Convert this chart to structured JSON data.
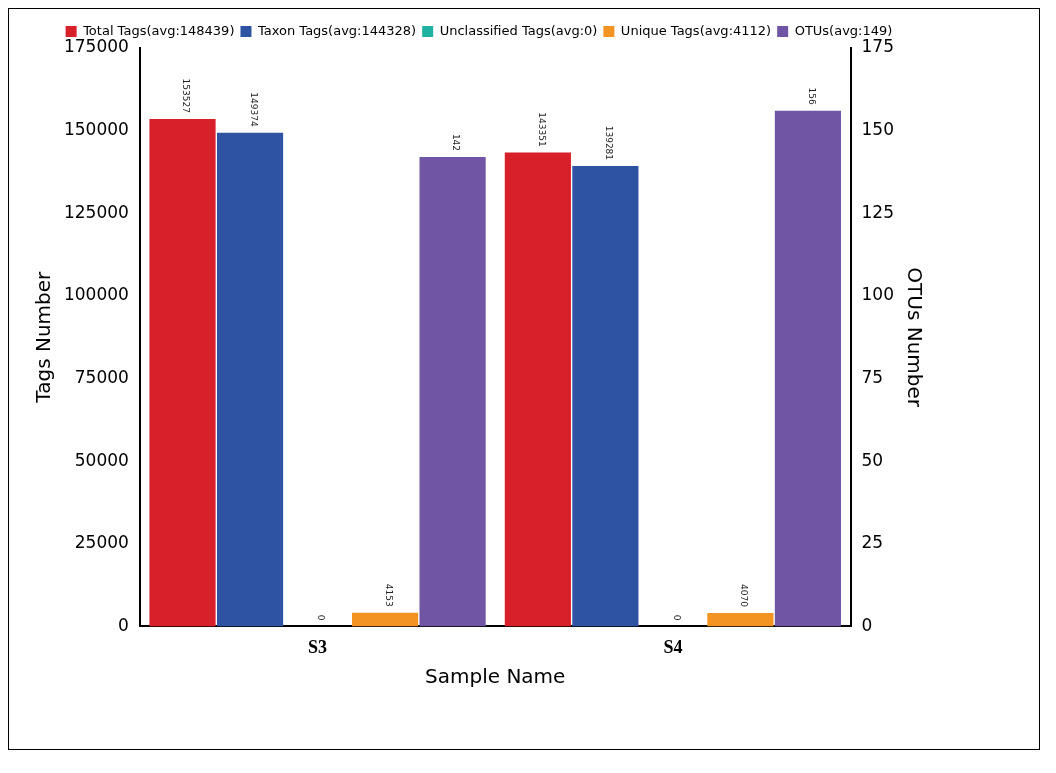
{
  "chart_data": {
    "type": "bar",
    "xlabel": "Sample Name",
    "ylabel": "Tags Number",
    "y2label": "OTUs Number",
    "categories": [
      "S3",
      "S4"
    ],
    "series": [
      {
        "name": "Total Tags(avg:148439)",
        "color": "#d7202a",
        "values": [
          153527,
          143351
        ]
      },
      {
        "name": "Taxon Tags(avg:144328)",
        "color": "#2f53a3",
        "values": [
          149374,
          139281
        ]
      },
      {
        "name": "Unclassified Tags(avg:0)",
        "color": "#20b2a0",
        "values": [
          0,
          0
        ]
      },
      {
        "name": "Unique Tags(avg:4112)",
        "color": "#f39422",
        "values": [
          4153,
          4070
        ]
      },
      {
        "name": "OTUs(avg:149)",
        "color": "#6f55a3",
        "values": [
          142,
          156
        ],
        "axis": "y2"
      }
    ],
    "ylim": [
      0,
      175000
    ],
    "yticks": [
      0,
      25000,
      50000,
      75000,
      100000,
      125000,
      150000,
      175000
    ],
    "y2lim": [
      0,
      175
    ],
    "y2ticks": [
      0,
      25,
      50,
      75,
      100,
      125,
      150,
      175
    ],
    "data_labels": true,
    "legend": "top",
    "grid": false
  }
}
